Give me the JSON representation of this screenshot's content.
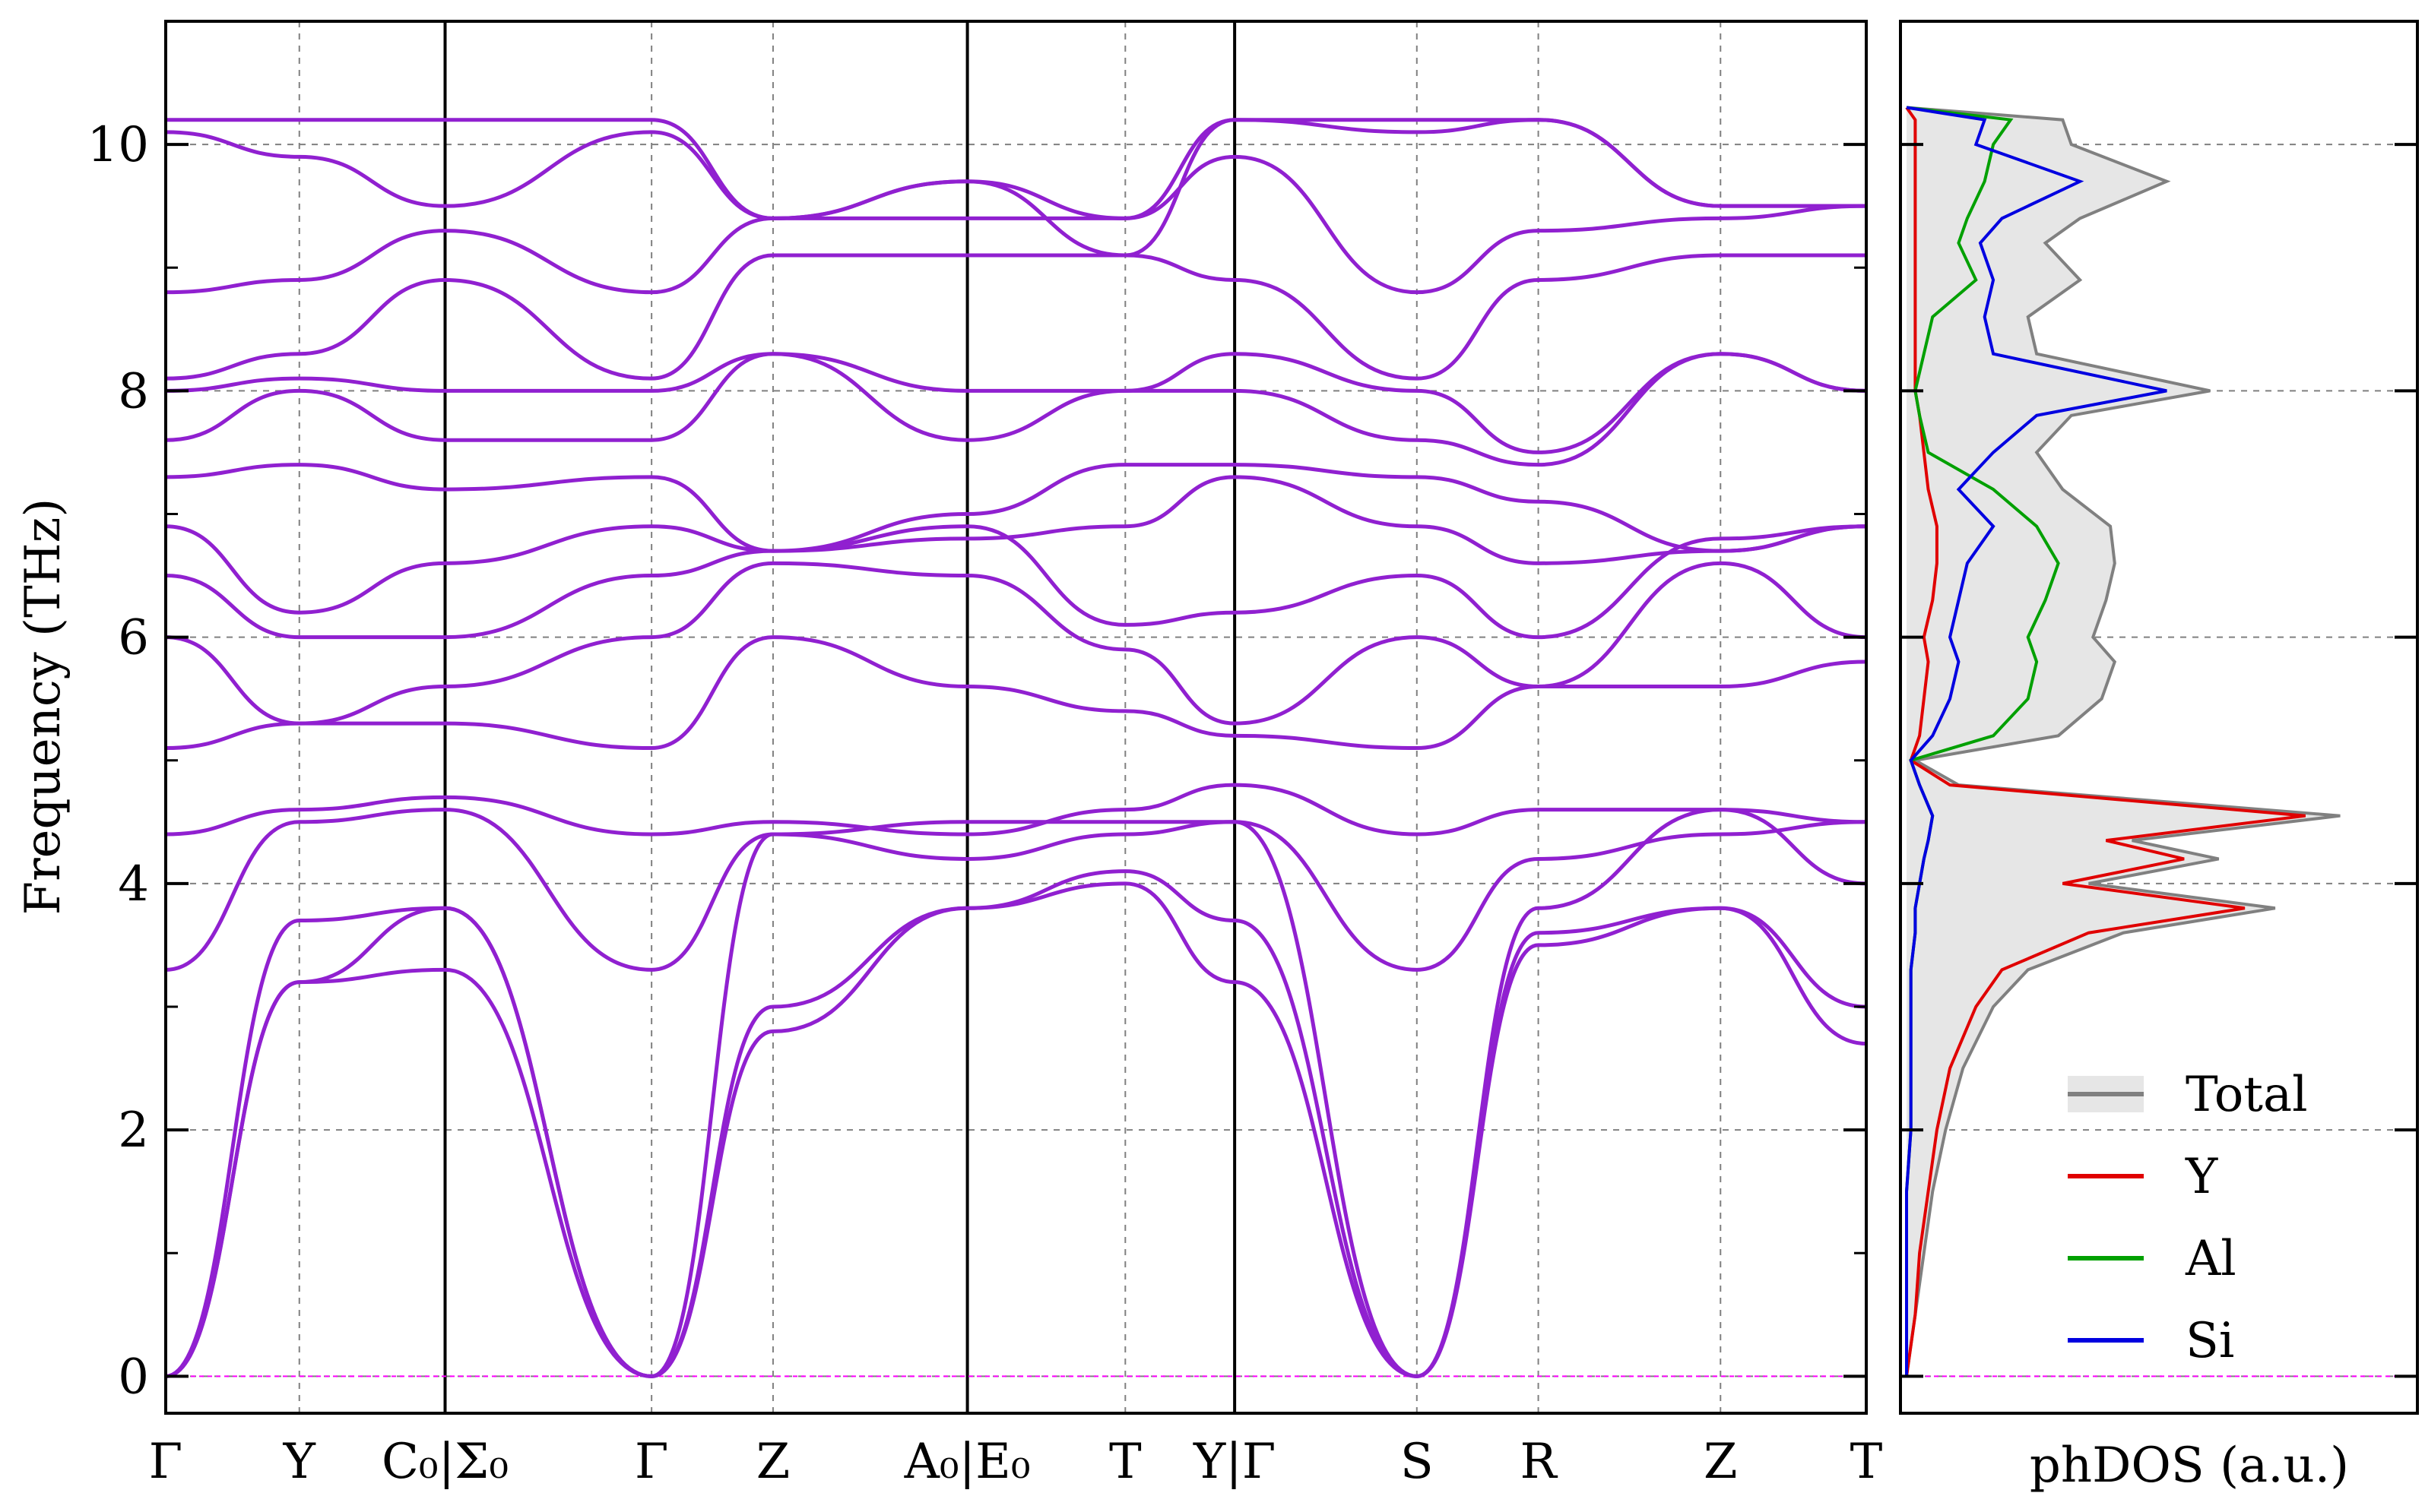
{
  "chart_data": {
    "type": "line",
    "band_structure": {
      "ylabel": "Frequency (THz)",
      "ylim": [
        -0.3,
        11.0
      ],
      "yticks": [
        0,
        2,
        4,
        6,
        8,
        10
      ],
      "ytick_labels": [
        "0",
        "2",
        "4",
        "6",
        "8",
        "10"
      ],
      "grid": true,
      "line_color": "#9020d0",
      "zero_line_color": "#ff00ff",
      "kpath_labels": [
        "Γ",
        "Y",
        "C₀|Σ₀",
        "Γ",
        "Z",
        "A₀|E₀",
        "T",
        "Y|Γ",
        "S",
        "R",
        "Z",
        "T"
      ],
      "kpath_positions": [
        0,
        0.55,
        1.15,
        2.0,
        2.5,
        3.3,
        3.95,
        4.4,
        5.15,
        5.65,
        6.4,
        7.0
      ],
      "segment_breaks": [
        1.15,
        3.3,
        4.4
      ],
      "xlim": [
        0,
        7.0
      ],
      "series": [
        {
          "name": "band-1",
          "x": [
            0,
            0.55,
            1.15,
            2.0,
            2.5,
            3.3,
            3.95,
            4.4,
            5.15,
            5.65,
            6.4,
            7.0
          ],
          "values": [
            0.0,
            3.2,
            3.8,
            0.0,
            2.8,
            3.8,
            4.0,
            3.2,
            0.0,
            3.5,
            3.8,
            2.7
          ]
        },
        {
          "name": "band-2",
          "x": [
            0,
            0.55,
            1.15,
            2.0,
            2.5,
            3.3,
            3.95,
            4.4,
            5.15,
            5.65,
            6.4,
            7.0
          ],
          "values": [
            0.0,
            3.2,
            3.3,
            0.0,
            3.0,
            3.8,
            4.1,
            3.7,
            0.0,
            3.6,
            3.8,
            3.0
          ]
        },
        {
          "name": "band-3",
          "x": [
            0,
            0.55,
            1.15,
            2.0,
            2.5,
            3.3,
            3.95,
            4.4,
            5.15,
            5.65,
            6.4,
            7.0
          ],
          "values": [
            0.0,
            3.7,
            3.8,
            0.0,
            4.4,
            4.2,
            4.4,
            4.5,
            0.0,
            3.8,
            4.6,
            4.0
          ]
        },
        {
          "name": "band-4",
          "x": [
            0,
            0.55,
            1.15,
            2.0,
            2.5,
            3.3,
            3.95,
            4.4,
            5.15,
            5.65,
            6.4,
            7.0
          ],
          "values": [
            3.3,
            4.5,
            4.6,
            3.3,
            4.4,
            4.5,
            4.5,
            4.5,
            3.3,
            4.2,
            4.4,
            4.5
          ]
        },
        {
          "name": "band-5",
          "x": [
            0,
            0.55,
            1.15,
            2.0,
            2.5,
            3.3,
            3.95,
            4.4,
            5.15,
            5.65,
            6.4,
            7.0
          ],
          "values": [
            4.4,
            4.6,
            4.7,
            4.4,
            4.5,
            4.4,
            4.6,
            4.8,
            4.4,
            4.6,
            4.6,
            4.5
          ]
        },
        {
          "name": "band-6",
          "x": [
            0,
            0.55,
            1.15,
            2.0,
            2.5,
            3.3,
            3.95,
            4.4,
            5.15,
            5.65,
            6.4,
            7.0
          ],
          "values": [
            5.1,
            5.3,
            5.3,
            5.1,
            6.0,
            5.6,
            5.4,
            5.2,
            5.1,
            5.6,
            5.6,
            5.8
          ]
        },
        {
          "name": "band-7",
          "x": [
            0,
            0.55,
            1.15,
            2.0,
            2.5,
            3.3,
            3.95,
            4.4,
            5.15,
            5.65,
            6.4,
            7.0
          ],
          "values": [
            6.0,
            5.3,
            5.6,
            6.0,
            6.6,
            6.5,
            5.9,
            5.3,
            6.0,
            5.6,
            6.6,
            6.0
          ]
        },
        {
          "name": "band-8",
          "x": [
            0,
            0.55,
            1.15,
            2.0,
            2.5,
            3.3,
            3.95,
            4.4,
            5.15,
            5.65,
            6.4,
            7.0
          ],
          "values": [
            6.5,
            6.0,
            6.0,
            6.5,
            6.7,
            6.9,
            6.1,
            6.2,
            6.5,
            6.0,
            6.8,
            6.9
          ]
        },
        {
          "name": "band-9",
          "x": [
            0,
            0.55,
            1.15,
            2.0,
            2.5,
            3.3,
            3.95,
            4.4,
            5.15,
            5.65,
            6.4,
            7.0
          ],
          "values": [
            6.9,
            6.2,
            6.6,
            6.9,
            6.7,
            6.8,
            6.9,
            7.3,
            6.9,
            6.6,
            6.7,
            6.9
          ]
        },
        {
          "name": "band-10",
          "x": [
            0,
            0.55,
            1.15,
            2.0,
            2.5,
            3.3,
            3.95,
            4.4,
            5.15,
            5.65,
            6.4,
            7.0
          ],
          "values": [
            7.3,
            7.4,
            7.2,
            7.3,
            6.7,
            7.0,
            7.4,
            7.4,
            7.3,
            7.1,
            6.7,
            6.9
          ]
        },
        {
          "name": "band-11",
          "x": [
            0,
            0.55,
            1.15,
            2.0,
            2.5,
            3.3,
            3.95,
            4.4,
            5.15,
            5.65,
            6.4,
            7.0
          ],
          "values": [
            7.6,
            8.0,
            7.6,
            7.6,
            8.3,
            7.6,
            8.0,
            8.0,
            7.6,
            7.4,
            8.3,
            8.0
          ]
        },
        {
          "name": "band-12",
          "x": [
            0,
            0.55,
            1.15,
            2.0,
            2.5,
            3.3,
            3.95,
            4.4,
            5.15,
            5.65,
            6.4,
            7.0
          ],
          "values": [
            8.0,
            8.1,
            8.0,
            8.0,
            8.3,
            8.0,
            8.0,
            8.3,
            8.0,
            7.5,
            8.3,
            8.0
          ]
        },
        {
          "name": "band-13",
          "x": [
            0,
            0.55,
            1.15,
            2.0,
            2.5,
            3.3,
            3.95,
            4.4,
            5.15,
            5.65,
            6.4,
            7.0
          ],
          "values": [
            8.1,
            8.3,
            8.9,
            8.1,
            9.1,
            9.1,
            9.1,
            8.9,
            8.1,
            8.9,
            9.1,
            9.1
          ]
        },
        {
          "name": "band-14",
          "x": [
            0,
            0.55,
            1.15,
            2.0,
            2.5,
            3.3,
            3.95,
            4.4,
            5.15,
            5.65,
            6.4,
            7.0
          ],
          "values": [
            8.8,
            8.9,
            9.3,
            8.8,
            9.4,
            9.4,
            9.4,
            9.9,
            8.8,
            9.3,
            9.4,
            9.5
          ]
        },
        {
          "name": "band-15",
          "x": [
            0,
            0.55,
            1.15,
            2.0,
            2.5,
            3.3,
            3.95,
            4.4,
            5.15,
            5.65,
            6.4,
            7.0
          ],
          "values": [
            10.1,
            9.9,
            9.5,
            10.1,
            9.4,
            9.7,
            9.4,
            10.2,
            10.1,
            10.2,
            9.5,
            9.5
          ]
        },
        {
          "name": "band-16",
          "x": [
            0,
            0.55,
            1.15,
            2.0,
            2.5,
            3.3,
            3.95,
            4.4,
            5.15,
            5.65,
            6.4,
            7.0
          ],
          "values": [
            10.2,
            10.2,
            10.2,
            10.2,
            9.4,
            9.7,
            9.1,
            10.2,
            10.2,
            10.2,
            9.5,
            9.5
          ]
        }
      ]
    },
    "dos": {
      "xlabel": "phDOS (a.u.)",
      "ylim": [
        -0.3,
        11.0
      ],
      "xlim": [
        0,
        1.0
      ],
      "grid": true,
      "legend_position": "bottom-right",
      "frequency": [
        0.0,
        0.5,
        1.0,
        1.5,
        2.0,
        2.5,
        3.0,
        3.3,
        3.6,
        3.8,
        4.0,
        4.2,
        4.35,
        4.55,
        4.8,
        5.0,
        5.2,
        5.5,
        5.8,
        6.0,
        6.3,
        6.6,
        6.9,
        7.2,
        7.5,
        7.8,
        8.0,
        8.3,
        8.6,
        8.9,
        9.2,
        9.4,
        9.7,
        10.0,
        10.2,
        10.3
      ],
      "series": [
        {
          "name": "Total",
          "color": "#808080",
          "fill": "#e6e6e6",
          "values": [
            0.0,
            0.02,
            0.04,
            0.06,
            0.09,
            0.13,
            0.2,
            0.28,
            0.5,
            0.85,
            0.42,
            0.72,
            0.52,
            1.0,
            0.12,
            0.02,
            0.35,
            0.45,
            0.48,
            0.43,
            0.46,
            0.48,
            0.47,
            0.36,
            0.3,
            0.38,
            0.7,
            0.3,
            0.28,
            0.4,
            0.32,
            0.4,
            0.6,
            0.38,
            0.36,
            0.0
          ]
        },
        {
          "name": "Y",
          "color": "#e00000",
          "values": [
            0.0,
            0.02,
            0.03,
            0.05,
            0.07,
            0.1,
            0.16,
            0.22,
            0.42,
            0.78,
            0.36,
            0.64,
            0.46,
            0.92,
            0.1,
            0.01,
            0.03,
            0.04,
            0.05,
            0.04,
            0.06,
            0.07,
            0.07,
            0.05,
            0.04,
            0.03,
            0.02,
            0.02,
            0.02,
            0.02,
            0.02,
            0.02,
            0.02,
            0.02,
            0.02,
            0.0
          ]
        },
        {
          "name": "Al",
          "color": "#00a000",
          "values": [
            0.0,
            0.0,
            0.0,
            0.0,
            0.01,
            0.01,
            0.01,
            0.01,
            0.02,
            0.02,
            0.03,
            0.04,
            0.05,
            0.06,
            0.03,
            0.01,
            0.2,
            0.28,
            0.3,
            0.28,
            0.32,
            0.35,
            0.3,
            0.2,
            0.05,
            0.03,
            0.02,
            0.04,
            0.06,
            0.16,
            0.12,
            0.14,
            0.18,
            0.2,
            0.24,
            0.0
          ]
        },
        {
          "name": "Si",
          "color": "#0000e0",
          "values": [
            0.0,
            0.0,
            0.0,
            0.0,
            0.01,
            0.01,
            0.01,
            0.01,
            0.02,
            0.02,
            0.03,
            0.04,
            0.05,
            0.06,
            0.03,
            0.01,
            0.06,
            0.1,
            0.12,
            0.1,
            0.12,
            0.14,
            0.2,
            0.12,
            0.2,
            0.3,
            0.6,
            0.2,
            0.18,
            0.2,
            0.17,
            0.22,
            0.4,
            0.16,
            0.18,
            0.0
          ]
        }
      ]
    }
  }
}
